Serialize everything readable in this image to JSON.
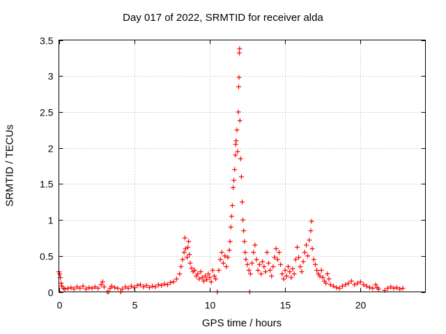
{
  "chart_data": {
    "type": "scatter",
    "title": "Day 017 of 2022, SRMTID for receiver alda",
    "xlabel": "GPS time / hours",
    "ylabel": "SRMTID / TECUs",
    "xlim": [
      0,
      24.3
    ],
    "ylim": [
      0,
      3.5
    ],
    "xticks": [
      "0",
      "5",
      "10",
      "15",
      "20"
    ],
    "xtick_values": [
      0,
      5,
      10,
      15,
      20
    ],
    "yticks": [
      "0",
      "0.5",
      "1",
      "1.5",
      "2",
      "2.5",
      "3",
      "3.5"
    ],
    "ytick_values": [
      0,
      0.5,
      1,
      1.5,
      2,
      2.5,
      3,
      3.5
    ],
    "grid": true,
    "marker": "+",
    "color": "#ff0000",
    "series": [
      {
        "name": "SRMTID",
        "points": [
          [
            0.0,
            0.28
          ],
          [
            0.05,
            0.25
          ],
          [
            0.1,
            0.2
          ],
          [
            0.15,
            0.12
          ],
          [
            0.2,
            0.08
          ],
          [
            0.3,
            0.05
          ],
          [
            0.4,
            0.04
          ],
          [
            0.6,
            0.05
          ],
          [
            0.8,
            0.06
          ],
          [
            1.0,
            0.04
          ],
          [
            1.2,
            0.07
          ],
          [
            1.4,
            0.05
          ],
          [
            1.6,
            0.08
          ],
          [
            1.8,
            0.04
          ],
          [
            2.0,
            0.06
          ],
          [
            2.2,
            0.05
          ],
          [
            2.4,
            0.07
          ],
          [
            2.6,
            0.05
          ],
          [
            2.8,
            0.1
          ],
          [
            2.9,
            0.14
          ],
          [
            3.0,
            0.07
          ],
          [
            3.2,
            0.0
          ],
          [
            3.3,
            0.0
          ],
          [
            3.4,
            0.05
          ],
          [
            3.5,
            0.08
          ],
          [
            3.7,
            0.06
          ],
          [
            3.9,
            0.05
          ],
          [
            4.1,
            0.0
          ],
          [
            4.2,
            0.04
          ],
          [
            4.4,
            0.07
          ],
          [
            4.6,
            0.05
          ],
          [
            4.8,
            0.08
          ],
          [
            5.0,
            0.06
          ],
          [
            5.2,
            0.09
          ],
          [
            5.4,
            0.1
          ],
          [
            5.6,
            0.07
          ],
          [
            5.8,
            0.09
          ],
          [
            6.0,
            0.06
          ],
          [
            6.2,
            0.08
          ],
          [
            6.4,
            0.07
          ],
          [
            6.6,
            0.1
          ],
          [
            6.8,
            0.09
          ],
          [
            7.0,
            0.11
          ],
          [
            7.2,
            0.1
          ],
          [
            7.4,
            0.13
          ],
          [
            7.6,
            0.14
          ],
          [
            7.8,
            0.18
          ],
          [
            8.0,
            0.25
          ],
          [
            8.1,
            0.35
          ],
          [
            8.2,
            0.45
          ],
          [
            8.3,
            0.55
          ],
          [
            8.35,
            0.75
          ],
          [
            8.4,
            0.6
          ],
          [
            8.5,
            0.48
          ],
          [
            8.55,
            0.62
          ],
          [
            8.6,
            0.7
          ],
          [
            8.65,
            0.52
          ],
          [
            8.7,
            0.4
          ],
          [
            8.8,
            0.33
          ],
          [
            8.9,
            0.28
          ],
          [
            9.0,
            0.3
          ],
          [
            9.1,
            0.22
          ],
          [
            9.2,
            0.25
          ],
          [
            9.3,
            0.18
          ],
          [
            9.4,
            0.28
          ],
          [
            9.5,
            0.2
          ],
          [
            9.6,
            0.15
          ],
          [
            9.7,
            0.22
          ],
          [
            9.8,
            0.17
          ],
          [
            9.9,
            0.25
          ],
          [
            10.0,
            0.2
          ],
          [
            10.1,
            0.14
          ],
          [
            10.2,
            0.3
          ],
          [
            10.3,
            0.22
          ],
          [
            10.4,
            0.18
          ],
          [
            10.5,
            0.0
          ],
          [
            10.6,
            0.3
          ],
          [
            10.7,
            0.45
          ],
          [
            10.8,
            0.55
          ],
          [
            10.9,
            0.4
          ],
          [
            11.0,
            0.5
          ],
          [
            11.1,
            0.35
          ],
          [
            11.2,
            0.48
          ],
          [
            11.3,
            0.58
          ],
          [
            11.35,
            0.7
          ],
          [
            11.4,
            0.9
          ],
          [
            11.45,
            1.05
          ],
          [
            11.5,
            1.2
          ],
          [
            11.55,
            1.45
          ],
          [
            11.6,
            1.55
          ],
          [
            11.65,
            1.7
          ],
          [
            11.7,
            1.9
          ],
          [
            11.72,
            2.05
          ],
          [
            11.75,
            2.1
          ],
          [
            11.8,
            2.25
          ],
          [
            11.85,
            1.95
          ],
          [
            11.9,
            2.5
          ],
          [
            11.92,
            2.85
          ],
          [
            11.94,
            2.98
          ],
          [
            11.96,
            3.32
          ],
          [
            11.98,
            3.38
          ],
          [
            12.0,
            2.38
          ],
          [
            12.05,
            1.85
          ],
          [
            12.1,
            1.6
          ],
          [
            12.15,
            1.25
          ],
          [
            12.2,
            1.0
          ],
          [
            12.25,
            0.85
          ],
          [
            12.3,
            0.7
          ],
          [
            12.35,
            0.55
          ],
          [
            12.4,
            0.45
          ],
          [
            12.5,
            0.38
          ],
          [
            12.6,
            0.3
          ],
          [
            12.65,
            0.0
          ],
          [
            12.7,
            0.25
          ],
          [
            12.8,
            0.4
          ],
          [
            12.9,
            0.55
          ],
          [
            13.0,
            0.65
          ],
          [
            13.1,
            0.45
          ],
          [
            13.2,
            0.3
          ],
          [
            13.3,
            0.38
          ],
          [
            13.4,
            0.25
          ],
          [
            13.5,
            0.42
          ],
          [
            13.6,
            0.35
          ],
          [
            13.7,
            0.28
          ],
          [
            13.8,
            0.55
          ],
          [
            13.9,
            0.4
          ],
          [
            14.0,
            0.3
          ],
          [
            14.1,
            0.22
          ],
          [
            14.2,
            0.35
          ],
          [
            14.3,
            0.48
          ],
          [
            14.4,
            0.6
          ],
          [
            14.5,
            0.45
          ],
          [
            14.6,
            0.55
          ],
          [
            14.7,
            0.38
          ],
          [
            14.8,
            0.25
          ],
          [
            14.9,
            0.18
          ],
          [
            15.0,
            0.3
          ],
          [
            15.1,
            0.22
          ],
          [
            15.2,
            0.35
          ],
          [
            15.3,
            0.28
          ],
          [
            15.4,
            0.2
          ],
          [
            15.5,
            0.32
          ],
          [
            15.6,
            0.25
          ],
          [
            15.7,
            0.45
          ],
          [
            15.8,
            0.62
          ],
          [
            15.9,
            0.48
          ],
          [
            16.0,
            0.35
          ],
          [
            16.1,
            0.28
          ],
          [
            16.2,
            0.42
          ],
          [
            16.3,
            0.55
          ],
          [
            16.4,
            0.65
          ],
          [
            16.5,
            0.5
          ],
          [
            16.6,
            0.72
          ],
          [
            16.7,
            0.85
          ],
          [
            16.75,
            0.98
          ],
          [
            16.8,
            0.6
          ],
          [
            16.9,
            0.45
          ],
          [
            17.0,
            0.38
          ],
          [
            17.1,
            0.3
          ],
          [
            17.2,
            0.25
          ],
          [
            17.3,
            0.22
          ],
          [
            17.4,
            0.3
          ],
          [
            17.5,
            0.2
          ],
          [
            17.6,
            0.15
          ],
          [
            17.7,
            0.12
          ],
          [
            17.8,
            0.25
          ],
          [
            17.9,
            0.18
          ],
          [
            18.0,
            0.1
          ],
          [
            18.2,
            0.08
          ],
          [
            18.4,
            0.06
          ],
          [
            18.6,
            0.05
          ],
          [
            18.8,
            0.08
          ],
          [
            19.0,
            0.1
          ],
          [
            19.2,
            0.12
          ],
          [
            19.4,
            0.15
          ],
          [
            19.6,
            0.1
          ],
          [
            19.8,
            0.12
          ],
          [
            20.0,
            0.14
          ],
          [
            20.2,
            0.1
          ],
          [
            20.4,
            0.08
          ],
          [
            20.6,
            0.06
          ],
          [
            20.8,
            0.05
          ],
          [
            21.0,
            0.1
          ],
          [
            21.1,
            0.06
          ],
          [
            21.2,
            0.04
          ],
          [
            21.6,
            0.02
          ],
          [
            21.8,
            0.05
          ],
          [
            22.0,
            0.07
          ],
          [
            22.2,
            0.05
          ],
          [
            22.4,
            0.06
          ],
          [
            22.6,
            0.04
          ],
          [
            22.8,
            0.05
          ]
        ]
      }
    ]
  }
}
